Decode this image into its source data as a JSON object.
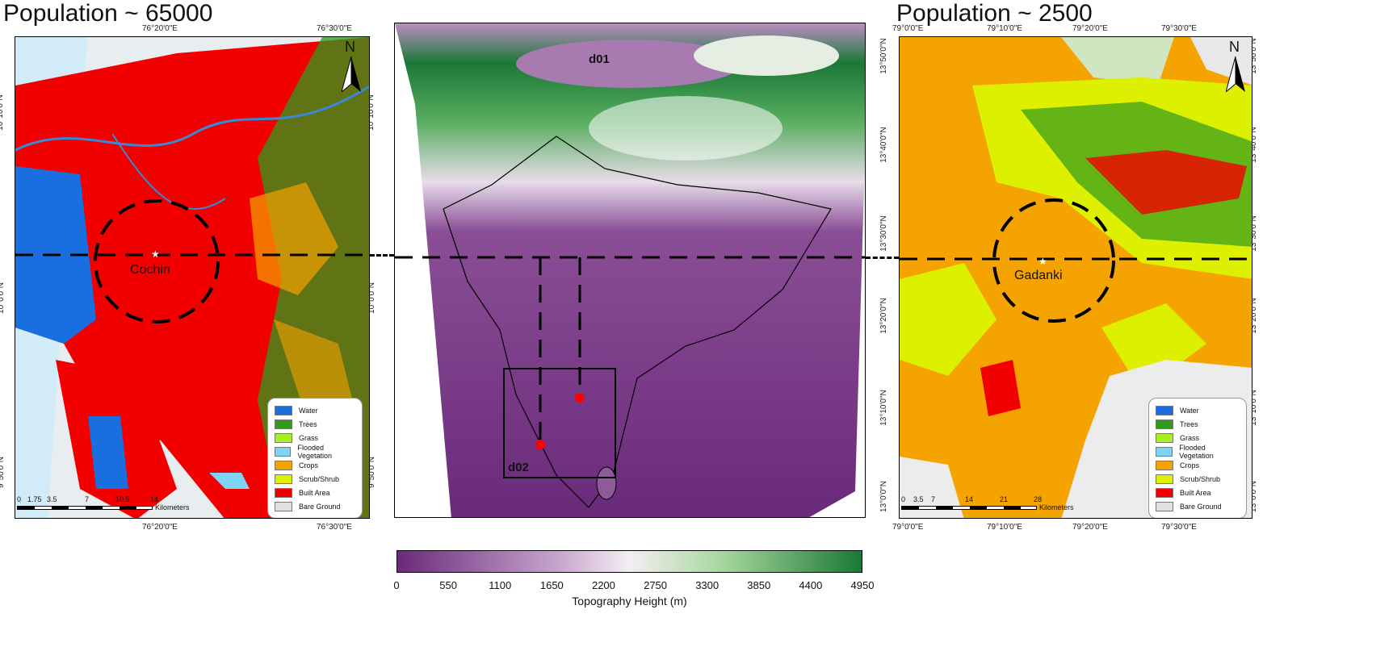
{
  "left_panel": {
    "title": "Population ~ 65000",
    "top_ticks": [
      "76°20'0\"E",
      "76°30'0\"E"
    ],
    "bottom_ticks": [
      "76°20'0\"E",
      "76°30'0\"E"
    ],
    "lat_ticks": [
      "10°10'0\"N",
      "10°0'0\"N",
      "9°50'0\"N"
    ],
    "site_label": "Cochin",
    "north": "N",
    "scale_values": [
      "0",
      "1.75",
      "3.5",
      "7",
      "10.5",
      "14"
    ],
    "scale_unit": "Kilometers"
  },
  "center_panel": {
    "domain_outer": "d01",
    "domain_inner": "d02",
    "colorbar_ticks": [
      "0",
      "550",
      "1100",
      "1650",
      "2200",
      "2750",
      "3300",
      "3850",
      "4400",
      "4950"
    ],
    "colorbar_label": "Topography Height (m)",
    "colormap": [
      "#6a2a7a",
      "#c8a6cf",
      "#f4eef2",
      "#a7d79d",
      "#1b7837"
    ]
  },
  "right_panel": {
    "title": "Population ~ 2500",
    "top_ticks": [
      "79°0'0\"E",
      "79°10'0\"E",
      "79°20'0\"E",
      "79°30'0\"E"
    ],
    "bottom_ticks": [
      "79°0'0\"E",
      "79°10'0\"E",
      "79°20'0\"E",
      "79°30'0\"E"
    ],
    "lat_ticks": [
      "13°50'0\"N",
      "13°40'0\"N",
      "13°30'0\"N",
      "13°20'0\"N",
      "13°10'0\"N",
      "13°0'0\"N"
    ],
    "site_label": "Gadanki",
    "north": "N",
    "scale_values": [
      "0",
      "3.5",
      "7",
      "14",
      "21",
      "28"
    ],
    "scale_unit": "Kilometers"
  },
  "legend": [
    {
      "label": "Water",
      "color": "#1a6fe0"
    },
    {
      "label": "Trees",
      "color": "#2f9a1c"
    },
    {
      "label": "Grass",
      "color": "#a8f020"
    },
    {
      "label": "Flooded Vegetation",
      "color": "#7fd4f5"
    },
    {
      "label": "Crops",
      "color": "#f5a300"
    },
    {
      "label": "Scrub/Shrub",
      "color": "#dcf000"
    },
    {
      "label": "Built Area",
      "color": "#f20000"
    },
    {
      "label": "Bare Ground",
      "color": "#e0e0e0"
    }
  ]
}
